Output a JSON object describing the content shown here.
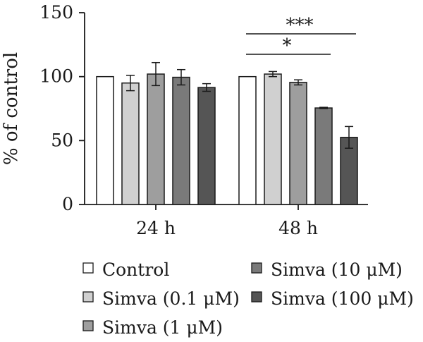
{
  "chart_data": {
    "type": "bar",
    "ylabel": "% of control",
    "xlabel": "",
    "ylim": [
      0,
      150
    ],
    "yticks": [
      0,
      50,
      100,
      150
    ],
    "categories": [
      "24 h",
      "48 h"
    ],
    "series": [
      {
        "name": "Control",
        "color": "#ffffff",
        "values": [
          100,
          100
        ],
        "errors": [
          0,
          0
        ]
      },
      {
        "name": "Simva (0.1 μM)",
        "color": "#d0d0d0",
        "values": [
          95,
          102
        ],
        "errors": [
          6,
          2
        ]
      },
      {
        "name": "Simva (1 μM)",
        "color": "#9e9e9e",
        "values": [
          102,
          95.5
        ],
        "errors": [
          9,
          2
        ]
      },
      {
        "name": "Simva (10 μM)",
        "color": "#7a7a7a",
        "values": [
          99.5,
          75.5
        ],
        "errors": [
          6,
          0.5
        ]
      },
      {
        "name": "Simva (100 μM)",
        "color": "#555555",
        "values": [
          91.5,
          52.5
        ],
        "errors": [
          3,
          8.5
        ]
      }
    ],
    "significance": [
      {
        "label": "*",
        "group": "48 h",
        "from_series": 0,
        "to_series": 3
      },
      {
        "label": "***",
        "group": "48 h",
        "from_series": 0,
        "to_series": 4
      }
    ],
    "legend_position": "bottom",
    "grid": false
  }
}
